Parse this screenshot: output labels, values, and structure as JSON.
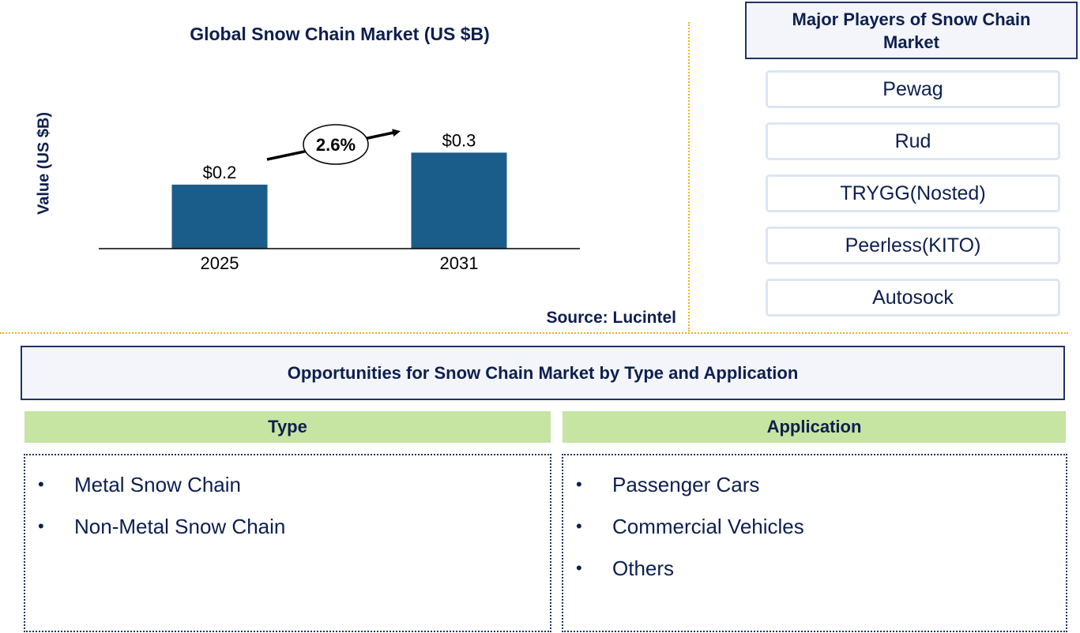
{
  "chart_data": {
    "type": "bar",
    "title": "Global Snow Chain Market (US $B)",
    "xlabel": "",
    "ylabel": "Value (US $B)",
    "categories": [
      "2025",
      "2031"
    ],
    "values": [
      0.2,
      0.3
    ],
    "data_labels": [
      "$0.2",
      "$0.3"
    ],
    "annotation": "2.6%",
    "ylim": [
      0,
      0.37
    ],
    "grid": false,
    "bar_color": "#1a5d8a"
  },
  "source": "Source: Lucintel",
  "players": {
    "title": "Major Players of Snow Chain Market",
    "items": [
      "Pewag",
      "Rud",
      "TRYGG(Nosted)",
      "Peerless(KITO)",
      "Autosock"
    ]
  },
  "opportunities": {
    "title": "Opportunities for Snow Chain Market by Type and Application",
    "type": {
      "title": "Type",
      "items": [
        "Metal Snow Chain",
        "Non-Metal Snow Chain"
      ]
    },
    "application": {
      "title": "Application",
      "items": [
        "Passenger Cars",
        "Commercial Vehicles",
        "Others"
      ]
    }
  },
  "colors": {
    "accent_text": "#0d1f4f",
    "divider": "#f0b51e",
    "segment_header": "#c6e4a2"
  }
}
